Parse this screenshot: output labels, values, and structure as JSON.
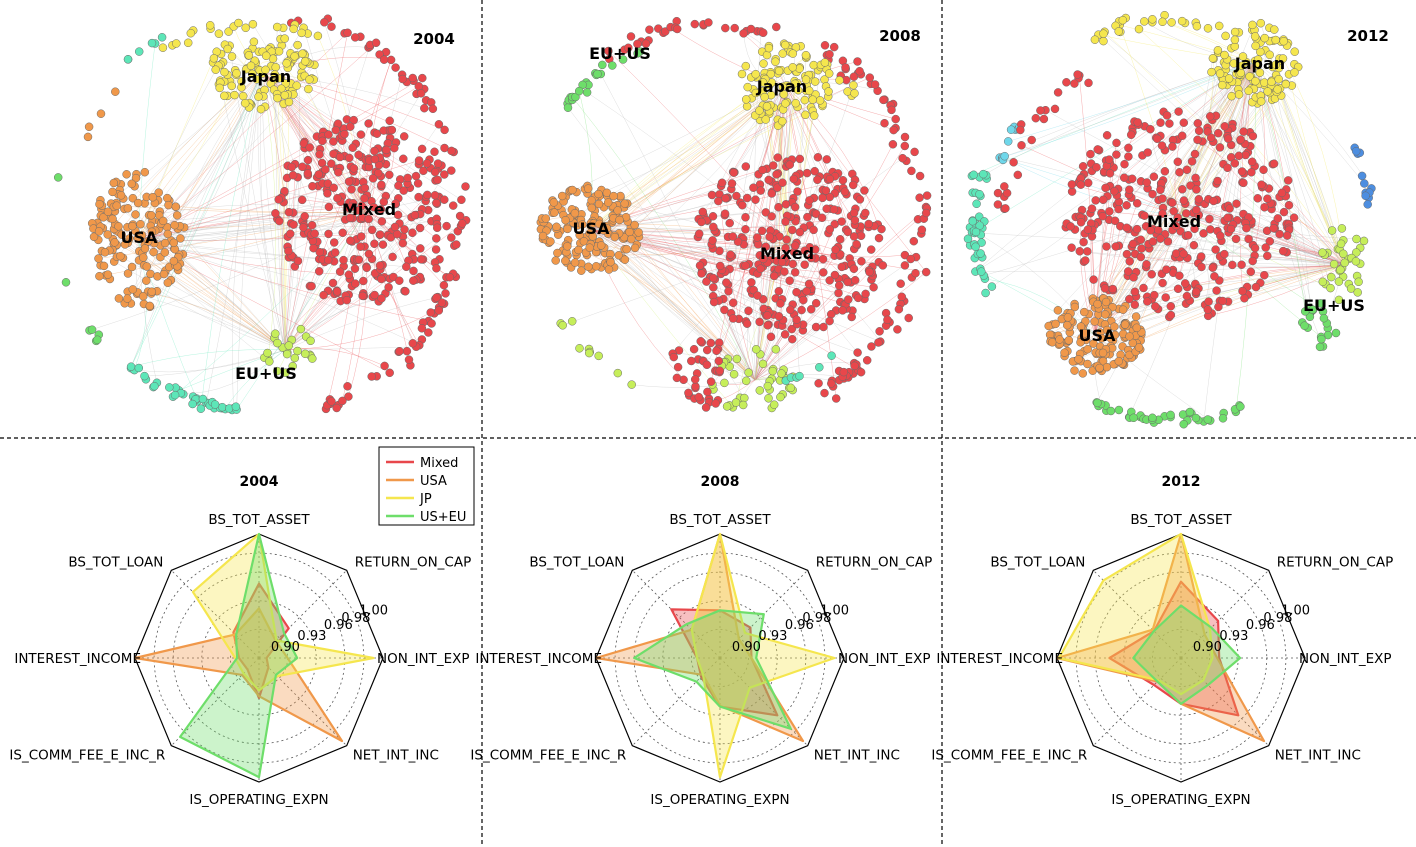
{
  "colors": {
    "mixed": "#e8474b",
    "usa": "#f0984a",
    "japan": "#f5e64e",
    "euus_lime": "#c6ee5a",
    "euus_teal": "#5de6b8",
    "green": "#6ede6a",
    "cyan": "#6fd7ea",
    "blue": "#4d8ee0",
    "edge_gray": "#b5b5b5"
  },
  "network_panels": [
    {
      "year": "2004",
      "clusters": [
        {
          "key": "mixed",
          "label": "Mixed"
        },
        {
          "key": "usa",
          "label": "USA"
        },
        {
          "key": "japan",
          "label": "Japan"
        },
        {
          "key": "euus",
          "label": "EU+US"
        }
      ]
    },
    {
      "year": "2008",
      "clusters": [
        {
          "key": "mixed",
          "label": "Mixed"
        },
        {
          "key": "usa",
          "label": "USA"
        },
        {
          "key": "japan",
          "label": "Japan"
        },
        {
          "key": "euus",
          "label": "EU+US"
        }
      ]
    },
    {
      "year": "2012",
      "clusters": [
        {
          "key": "mixed",
          "label": "Mixed"
        },
        {
          "key": "usa",
          "label": "USA"
        },
        {
          "key": "japan",
          "label": "Japan"
        },
        {
          "key": "euus",
          "label": "EU+US"
        }
      ]
    }
  ],
  "chart_data": [
    {
      "type": "radar",
      "title": "2004",
      "axes": [
        "BS_TOT_ASSET",
        "RETURN_ON_CAP",
        "NON_INT_EXP",
        "NET_INT_INC",
        "IS_OPERATING_EXPN",
        "IS_COMM_FEE_E_INC_R",
        "INTEREST_INCOME",
        "BS_TOT_LOAN"
      ],
      "rlim": [
        0.87,
        1.0
      ],
      "tick_labels": [
        "0.90",
        "0.93",
        "0.96",
        "0.98",
        "1.00"
      ],
      "tick_values": [
        0.9,
        0.93,
        0.96,
        0.98,
        1.0
      ],
      "series": [
        {
          "name": "Mixed",
          "color_key": "mixed",
          "values": [
            0.948,
            0.914,
            0.878,
            0.884,
            0.912,
            0.887,
            0.891,
            0.908
          ]
        },
        {
          "name": "USA",
          "color_key": "usa",
          "values": [
            0.922,
            0.895,
            0.9,
            0.993,
            0.91,
            0.895,
            1.0,
            0.905
          ]
        },
        {
          "name": "JP",
          "color_key": "japan",
          "values": [
            1.0,
            0.896,
            0.99,
            0.897,
            0.904,
            0.893,
            0.895,
            0.968
          ]
        },
        {
          "name": "US+EU",
          "color_key": "green",
          "values": [
            1.0,
            0.907,
            0.91,
            0.895,
            0.995,
            0.987,
            0.893,
            0.904
          ]
        }
      ],
      "legend": [
        "Mixed",
        "USA",
        "JP",
        "US+EU"
      ]
    },
    {
      "type": "radar",
      "title": "2008",
      "axes": [
        "BS_TOT_ASSET",
        "RETURN_ON_CAP",
        "NON_INT_EXP",
        "NET_INT_INC",
        "IS_OPERATING_EXPN",
        "IS_COMM_FEE_E_INC_R",
        "INTEREST_INCOME",
        "BS_TOT_LOAN"
      ],
      "rlim": [
        0.87,
        1.0
      ],
      "tick_labels": [
        "0.90",
        "0.93",
        "0.96",
        "0.98",
        "1.00"
      ],
      "tick_values": [
        0.9,
        0.93,
        0.96,
        0.98,
        1.0
      ],
      "series": [
        {
          "name": "Mixed",
          "color_key": "mixed",
          "values": [
            0.92,
            0.915,
            0.903,
            0.955,
            0.921,
            0.898,
            0.894,
            0.942
          ]
        },
        {
          "name": "USA",
          "color_key": "usa",
          "values": [
            1.0,
            0.898,
            0.903,
            0.993,
            0.92,
            0.895,
            1.0,
            0.912
          ]
        },
        {
          "name": "JP",
          "color_key": "japan",
          "values": [
            1.0,
            0.907,
            0.99,
            0.914,
            0.995,
            0.895,
            0.894,
            0.912
          ]
        },
        {
          "name": "US+EU",
          "color_key": "green",
          "values": [
            0.92,
            0.935,
            0.908,
            0.975,
            0.921,
            0.905,
            0.96,
            0.92
          ]
        }
      ]
    },
    {
      "type": "radar",
      "title": "2012",
      "axes": [
        "BS_TOT_ASSET",
        "RETURN_ON_CAP",
        "NON_INT_EXP",
        "NET_INT_INC",
        "IS_OPERATING_EXPN",
        "IS_COMM_FEE_E_INC_R",
        "INTEREST_INCOME",
        "BS_TOT_LOAN"
      ],
      "rlim": [
        0.87,
        1.0
      ],
      "tick_labels": [
        "0.90",
        "0.93",
        "0.96",
        "0.98",
        "1.00"
      ],
      "tick_values": [
        0.9,
        0.93,
        0.96,
        0.98,
        1.0
      ],
      "series": [
        {
          "name": "Mixed",
          "color_key": "mixed",
          "values": [
            0.95,
            0.925,
            0.91,
            0.955,
            0.918,
            0.91,
            0.945,
            0.91
          ]
        },
        {
          "name": "USA",
          "color_key": "usa",
          "values": [
            1.0,
            0.905,
            0.908,
            0.993,
            0.918,
            0.905,
            1.0,
            0.912
          ]
        },
        {
          "name": "JP",
          "color_key": "japan",
          "values": [
            1.0,
            0.913,
            0.903,
            0.903,
            0.908,
            0.903,
            0.998,
            0.985
          ]
        },
        {
          "name": "US+EU",
          "color_key": "green",
          "values": [
            0.925,
            0.915,
            0.932,
            0.91,
            0.918,
            0.905,
            0.92,
            0.91
          ]
        }
      ]
    }
  ]
}
